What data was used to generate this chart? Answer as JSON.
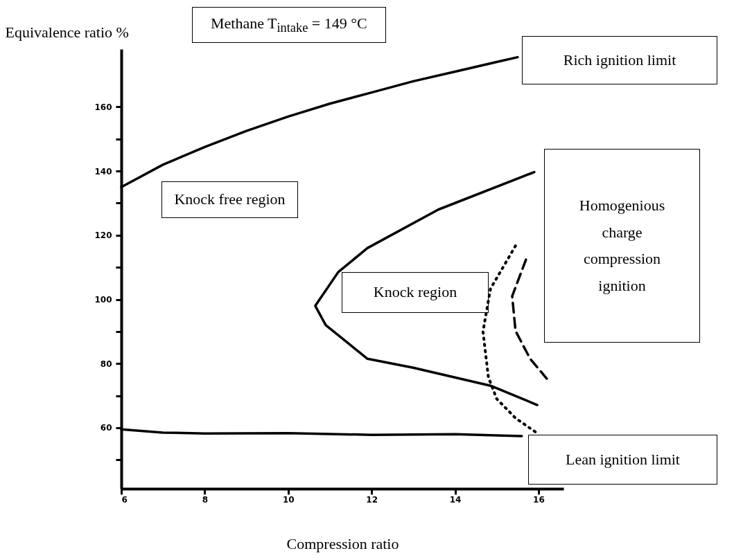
{
  "chart_data": {
    "type": "line",
    "title": "Methane T$_{intake}$ = 149 °C",
    "xlabel": "Compression ratio",
    "ylabel": "Equivalence ratio %",
    "xlim": [
      6,
      16.6
    ],
    "ylim": [
      41,
      178
    ],
    "xticks": [
      6,
      8,
      10,
      12,
      14,
      16
    ],
    "yticks": [
      {
        "value": 50,
        "label": null
      },
      60,
      {
        "value": 70,
        "label": null
      },
      80,
      {
        "value": 90,
        "label": null
      },
      100,
      {
        "value": 110,
        "label": null
      },
      120,
      {
        "value": 130,
        "label": null
      },
      140,
      {
        "value": 150,
        "label": null
      },
      160
    ],
    "grid": false,
    "line_style": "solid",
    "series": [
      {
        "color": "#000000",
        "x": [
          6,
          7,
          8,
          9,
          10,
          11,
          12,
          13,
          14,
          15,
          15.5
        ],
        "values": [
          135,
          142,
          147.5,
          152.5,
          157,
          161,
          164.5,
          168,
          171,
          174,
          175.5
        ]
      },
      {
        "color": "#000000",
        "x": [
          15.9,
          13.6,
          11.9,
          11.2,
          10.65,
          10.9,
          11.9,
          13,
          14.85,
          15.97
        ],
        "values": [
          139.7,
          128,
          116,
          108.5,
          98,
          92,
          81.5,
          78.7,
          73.1,
          67.1
        ]
      },
      {
        "color": "#000000",
        "x": [
          6,
          7,
          8,
          10,
          12,
          14,
          15,
          15.6
        ],
        "values": [
          59.5,
          58.5,
          58.2,
          58.3,
          57.8,
          58,
          57.6,
          57.4
        ]
      },
      {
        "color": "#000000",
        "line_style": "dotted",
        "x": [
          15.45,
          14.85,
          14.67,
          14.8,
          15,
          15.45,
          15.97
        ],
        "values": [
          116.7,
          103.3,
          90,
          75.7,
          69,
          63,
          58.3
        ]
      },
      {
        "color": "#000000",
        "line_style": "dashed",
        "x": [
          15.7,
          15.37,
          15.45,
          15.8,
          16.2
        ],
        "values": [
          112.4,
          101,
          90.2,
          81.5,
          75.3
        ]
      }
    ],
    "annotations": [
      "Rich ignition limit",
      "Knock free region",
      "Knock region",
      "Homogenious\ncharge\ncompression\nignition",
      "Lean ignition limit"
    ]
  }
}
